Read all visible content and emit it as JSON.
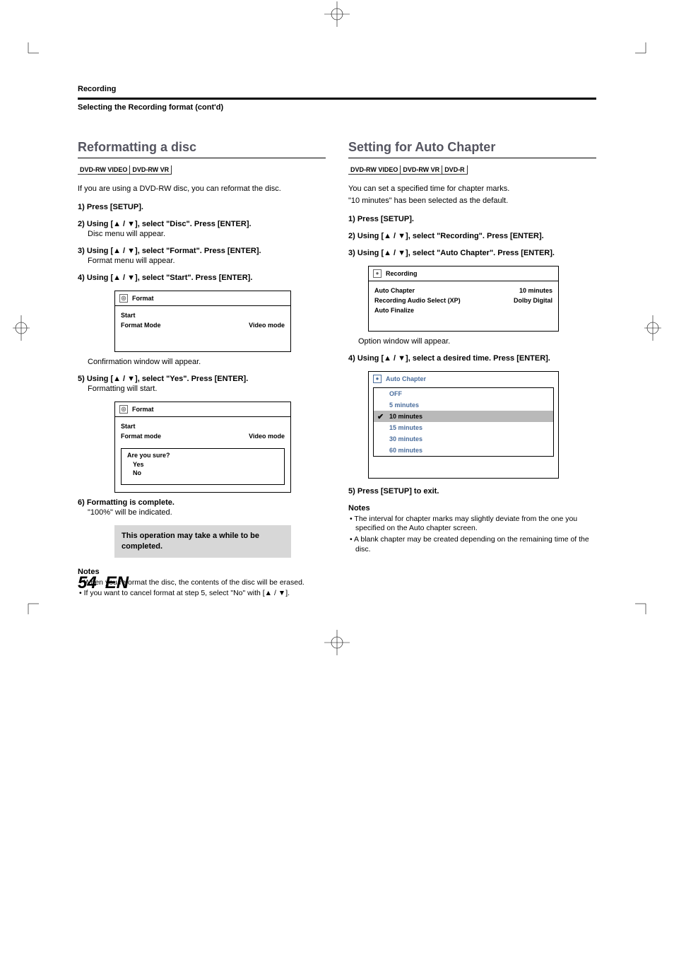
{
  "page": {
    "breadcrumb": "Recording",
    "subhead": "Selecting the Recording format (cont'd)",
    "number": "54",
    "lang": "EN"
  },
  "left": {
    "title": "Reformatting a disc",
    "badges": [
      "DVD-RW VIDEO",
      "DVD-RW VR"
    ],
    "intro": "If you are using a DVD-RW disc, you can reformat the disc.",
    "steps": [
      {
        "head": "1) Press [SETUP].",
        "body": ""
      },
      {
        "head": "2) Using [▲ / ▼], select \"Disc\". Press [ENTER].",
        "body": "Disc menu will appear."
      },
      {
        "head": "3) Using [▲ / ▼], select \"Format\". Press [ENTER].",
        "body": "Format menu will appear."
      },
      {
        "head": "4) Using [▲ / ▼], select \"Start\". Press [ENTER].",
        "body": ""
      }
    ],
    "menu1": {
      "title": "Format",
      "rows": [
        {
          "label": "Start",
          "value": ""
        },
        {
          "label": "Format Mode",
          "value": "Video mode"
        }
      ]
    },
    "after_menu1": "Confirmation window will appear.",
    "step5": {
      "head": "5) Using [▲ / ▼], select \"Yes\". Press [ENTER].",
      "body": "Formatting will start."
    },
    "menu2": {
      "title": "Format",
      "rows": [
        {
          "label": "Start",
          "value": ""
        },
        {
          "label": "Format mode",
          "value": "Video mode"
        }
      ],
      "sub": {
        "title": "Are you sure?",
        "rows": [
          "Yes",
          "No"
        ]
      }
    },
    "step6": {
      "head": "6) Formatting is complete.",
      "body": "\"100%\" will be indicated."
    },
    "callout": "This operation may take a while to be completed.",
    "notes_head": "Notes",
    "notes": [
      "When you reformat the disc, the contents of the disc will be erased.",
      "If you want to cancel format at step 5, select \"No\" with [▲ / ▼]."
    ]
  },
  "right": {
    "title": "Setting for Auto Chapter",
    "badges": [
      "DVD-RW VIDEO",
      "DVD-RW VR",
      "DVD-R"
    ],
    "intro1": "You can set a specified time for chapter marks.",
    "intro2": "\"10 minutes\" has been selected as the default.",
    "steps": [
      {
        "head": "1) Press [SETUP].",
        "body": ""
      },
      {
        "head": "2) Using [▲ / ▼], select \"Recording\". Press [ENTER].",
        "body": ""
      },
      {
        "head": "3) Using [▲ / ▼], select \"Auto Chapter\". Press [ENTER].",
        "body": ""
      }
    ],
    "menu": {
      "title": "Recording",
      "rows": [
        {
          "label": "Auto Chapter",
          "value": "10 minutes"
        },
        {
          "label": "Recording Audio Select (XP)",
          "value": "Dolby Digital"
        },
        {
          "label": "Auto Finalize",
          "value": ""
        }
      ]
    },
    "after_menu": "Option window will appear.",
    "step4": {
      "head": "4) Using [▲ / ▼], select a desired time.  Press [ENTER].",
      "body": ""
    },
    "options": {
      "title": "Auto Chapter",
      "rows": [
        "OFF",
        "5 minutes",
        "10 minutes",
        "15 minutes",
        "30 minutes",
        "60 minutes"
      ],
      "selected_index": 2
    },
    "step5": {
      "head": "5) Press [SETUP] to exit.",
      "body": ""
    },
    "notes_head": "Notes",
    "notes": [
      "The interval for chapter marks may slightly deviate from the one you specified on the Auto chapter screen.",
      "A blank chapter may be created depending on the remaining time of the disc."
    ]
  },
  "colors": {
    "section_title": "#555560",
    "option_text": "#4a6d9c",
    "callout_bg": "#d7d7d7",
    "selected_bg": "#b9b9b9"
  }
}
